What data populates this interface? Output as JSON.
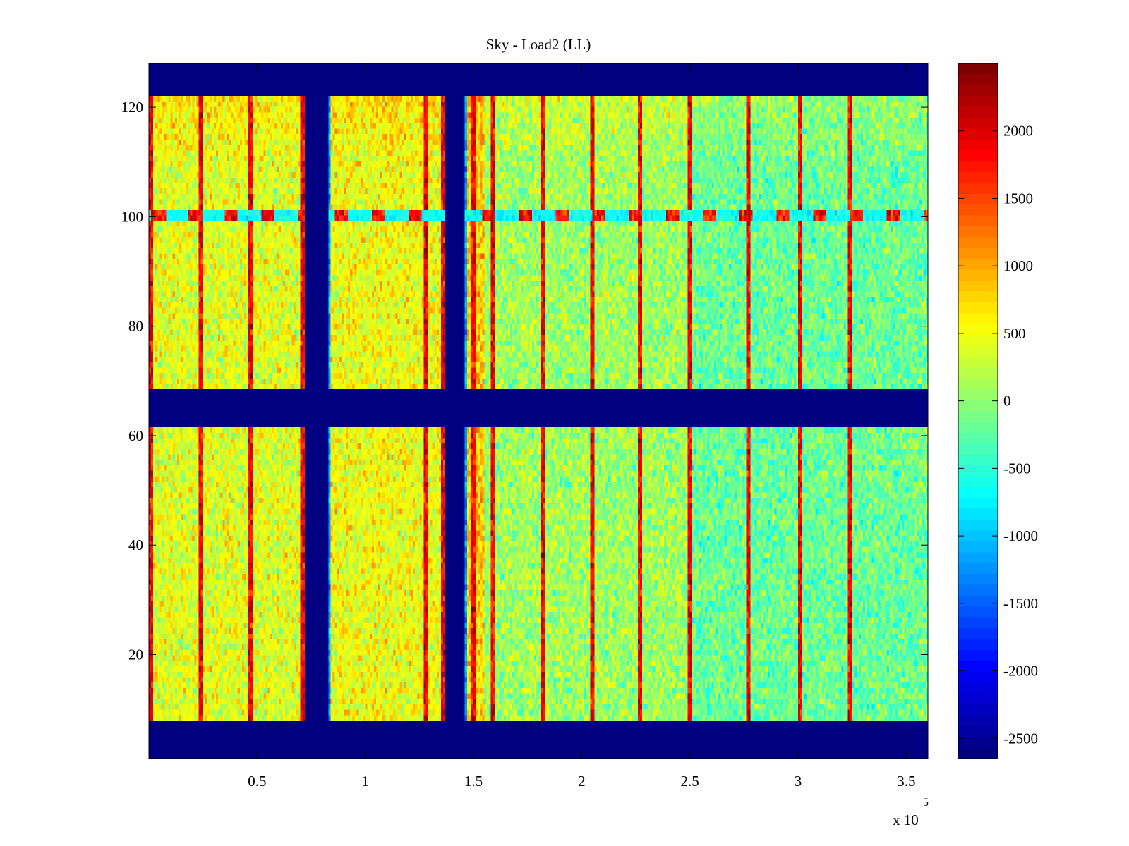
{
  "chart_data": {
    "type": "heatmap",
    "title": "Sky - Load2 (LL)",
    "xlabel": "",
    "ylabel": "",
    "x_exponent_label": "x 10",
    "x_exponent_power": "5",
    "xlim": [
      0,
      3.6
    ],
    "ylim": [
      1,
      128
    ],
    "xticks": [
      0.5,
      1,
      1.5,
      2,
      2.5,
      3,
      3.5
    ],
    "xtick_labels": [
      "0.5",
      "1",
      "1.5",
      "2",
      "2.5",
      "3",
      "3.5"
    ],
    "yticks": [
      20,
      40,
      60,
      80,
      100,
      120
    ],
    "ytick_labels": [
      "20",
      "40",
      "60",
      "80",
      "100",
      "120"
    ],
    "colormap": "jet",
    "clim": [
      -2650,
      2500
    ],
    "colorbar_ticks": [
      2000,
      1500,
      1000,
      500,
      0,
      -500,
      -1000,
      -1500,
      -2000,
      -2500
    ],
    "colorbar_tick_labels": [
      "2000",
      "1500",
      "1000",
      "500",
      "0",
      "-500",
      "-1000",
      "-1500",
      "-2000",
      "-2500"
    ],
    "masked_value": -2650,
    "masked_row_bands": [
      [
        1,
        8
      ],
      [
        62,
        68
      ],
      [
        122,
        128
      ]
    ],
    "masked_column_bands": [
      [
        0.72,
        0.83
      ],
      [
        1.37,
        1.46
      ]
    ],
    "hot_row": 100,
    "bright_column_lines": [
      0.01,
      0.24,
      0.47,
      0.71,
      1.28,
      1.36,
      1.5,
      1.59,
      1.82,
      2.05,
      2.27,
      2.5,
      2.77,
      3.01,
      3.24
    ],
    "column_mean_levels": [
      {
        "from": 0.0,
        "to": 0.72,
        "value": 420
      },
      {
        "from": 0.83,
        "to": 1.37,
        "value": 500
      },
      {
        "from": 1.46,
        "to": 1.55,
        "value": 800
      },
      {
        "from": 1.55,
        "to": 2.5,
        "value": 80
      },
      {
        "from": 2.5,
        "to": 3.6,
        "value": -180
      }
    ],
    "top_rows_extra": 250,
    "noise_amplitude": 380
  }
}
